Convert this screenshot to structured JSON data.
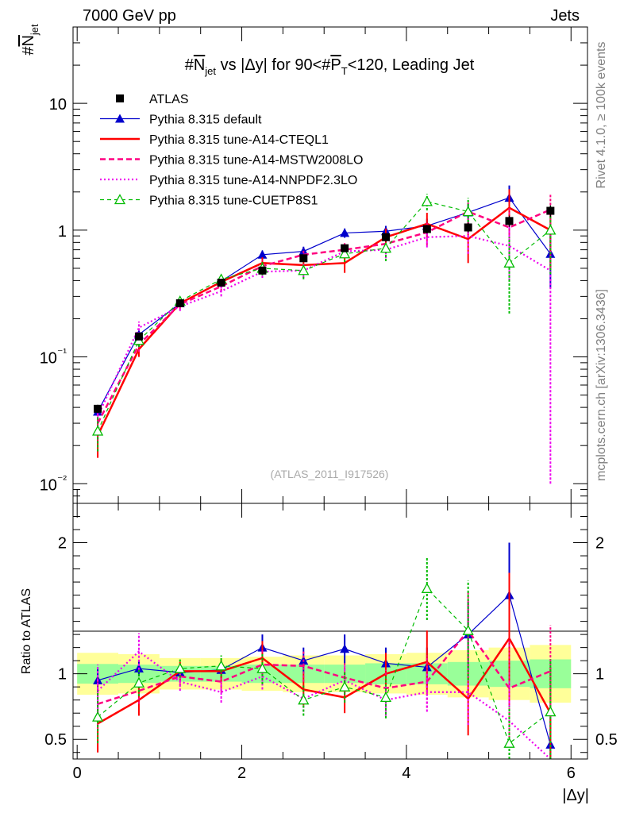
{
  "header": {
    "energy": "7000 GeV pp",
    "category": "Jets",
    "side_rivet": "Rivet 4.1.0, ≥ 100k events",
    "side_mcplots": "mcplots.cern.ch [arXiv:1306.3436]",
    "watermark": "(ATLAS_2011_I917526)"
  },
  "chart_data": [
    {
      "panel": "main",
      "type": "scatter",
      "title": "#N_jet vs |Δy| for 90<#P_T<120, Leading Jet",
      "title_parts": [
        "#",
        "N",
        "jet",
        " vs |Δy| for 90<#",
        "P",
        "T",
        "<120, Leading Jet"
      ],
      "ylabel": "#N_jet",
      "ylabel_parts": [
        "#",
        "N",
        "jet"
      ],
      "yscale": "log",
      "xlim": [
        -0.05,
        6.2
      ],
      "ylim": [
        0.007,
        40
      ],
      "ytick_labels": [
        "10",
        "1",
        "10⁻¹",
        "10⁻²"
      ],
      "x": [
        0.25,
        0.75,
        1.25,
        1.75,
        2.25,
        2.75,
        3.25,
        3.75,
        4.25,
        4.75,
        5.25,
        5.75
      ],
      "series": [
        {
          "name": "ATLAS",
          "style": "data",
          "color": "#000000",
          "values": [
            0.039,
            0.145,
            0.265,
            0.385,
            0.48,
            0.6,
            0.72,
            0.88,
            1.02,
            1.05,
            1.18,
            1.42
          ],
          "errors": [
            0.003,
            0.008,
            0.012,
            0.02,
            0.03,
            0.04,
            0.05,
            0.07,
            0.08,
            0.09,
            0.12,
            0.15
          ]
        },
        {
          "name": "Pythia 8.315 default",
          "style": "solid",
          "color": "#0000cc",
          "marker": "triangle-filled",
          "values": [
            0.037,
            0.15,
            0.265,
            0.395,
            0.64,
            0.68,
            0.95,
            0.98,
            1.08,
            1.38,
            1.8,
            0.65
          ],
          "errors": [
            0.003,
            0.008,
            0.015,
            0.025,
            0.05,
            0.06,
            0.08,
            0.1,
            0.15,
            0.25,
            0.45,
            0.3
          ]
        },
        {
          "name": "Pythia 8.315 tune-A14-CTEQL1",
          "style": "thick",
          "color": "#ff0000",
          "values": [
            0.024,
            0.115,
            0.265,
            0.39,
            0.55,
            0.53,
            0.55,
            0.88,
            1.12,
            0.85,
            1.5,
            1.0
          ],
          "errors": [
            0.008,
            0.015,
            0.02,
            0.03,
            0.06,
            0.07,
            0.09,
            0.15,
            0.25,
            0.3,
            0.6,
            0.5
          ]
        },
        {
          "name": "Pythia 8.315 tune-A14-MSTW2008LO",
          "style": "dashed",
          "color": "#ff0080",
          "values": [
            0.03,
            0.125,
            0.26,
            0.36,
            0.52,
            0.64,
            0.7,
            0.78,
            0.96,
            1.4,
            1.05,
            1.45
          ],
          "errors": [
            0.008,
            0.015,
            0.02,
            0.03,
            0.06,
            0.07,
            0.09,
            0.12,
            0.2,
            0.3,
            0.45,
            0.5
          ]
        },
        {
          "name": "Pythia 8.315 tune-A14-NNPDF2.3LO",
          "style": "dotted",
          "color": "#ee00ee",
          "values": [
            0.034,
            0.17,
            0.25,
            0.33,
            0.47,
            0.48,
            0.68,
            0.7,
            0.88,
            0.9,
            0.75,
            0.48
          ],
          "errors": [
            0.008,
            0.02,
            0.02,
            0.03,
            0.05,
            0.06,
            0.08,
            0.1,
            0.15,
            0.25,
            0.35,
            0.47
          ]
        },
        {
          "name": "Pythia 8.315 tune-CUETP8S1",
          "style": "dashed-thin",
          "color": "#00bb00",
          "marker": "triangle-open",
          "values": [
            0.026,
            0.135,
            0.275,
            0.41,
            0.5,
            0.48,
            0.65,
            0.72,
            1.68,
            1.4,
            0.55,
            1.0
          ],
          "errors": [
            0.008,
            0.015,
            0.02,
            0.03,
            0.06,
            0.07,
            0.09,
            0.15,
            0.25,
            0.4,
            0.33,
            0.55
          ]
        }
      ]
    },
    {
      "panel": "ratio",
      "type": "scatter",
      "ylabel": "Ratio to ATLAS",
      "xlabel": "|Δy|",
      "xlim": [
        -0.05,
        6.2
      ],
      "ylim": [
        0.35,
        2.3
      ],
      "xticks": [
        0,
        2,
        4,
        6
      ],
      "xtick_labels": [
        "0",
        "2",
        "4",
        "6"
      ],
      "yticks": [
        0.5,
        1,
        2
      ],
      "ytick_labels": [
        "0.5",
        "1",
        "2"
      ],
      "x_edges": [
        0,
        0.5,
        1,
        1.5,
        2,
        2.5,
        3,
        3.5,
        4,
        4.5,
        5,
        5.5,
        6
      ],
      "band_inner": [
        0.075,
        0.07,
        0.06,
        0.06,
        0.07,
        0.07,
        0.07,
        0.08,
        0.08,
        0.09,
        0.1,
        0.11
      ],
      "band_outer": [
        0.16,
        0.15,
        0.12,
        0.12,
        0.13,
        0.14,
        0.14,
        0.15,
        0.16,
        0.18,
        0.2,
        0.22
      ],
      "x": [
        0.25,
        0.75,
        1.25,
        1.75,
        2.25,
        2.75,
        3.25,
        3.75,
        4.25,
        4.75,
        5.25,
        5.75
      ],
      "series": [
        {
          "name": "Pythia 8.315 default",
          "style": "solid",
          "color": "#0000cc",
          "marker": "triangle-filled",
          "values": [
            0.95,
            1.04,
            1.01,
            1.03,
            1.2,
            1.1,
            1.19,
            1.08,
            1.05,
            1.3,
            1.6,
            0.46
          ],
          "errors": [
            0.1,
            0.06,
            0.05,
            0.06,
            0.1,
            0.1,
            0.11,
            0.12,
            0.15,
            0.25,
            0.4,
            0.2
          ]
        },
        {
          "name": "Pythia 8.315 tune-A14-CTEQL1",
          "style": "thick",
          "color": "#ff0000",
          "values": [
            0.62,
            0.8,
            1.02,
            1.02,
            1.12,
            0.88,
            0.82,
            1.0,
            1.09,
            0.81,
            1.27,
            0.7
          ],
          "errors": [
            0.22,
            0.12,
            0.07,
            0.08,
            0.13,
            0.12,
            0.12,
            0.16,
            0.24,
            0.28,
            0.5,
            0.35
          ]
        },
        {
          "name": "Pythia 8.315 tune-A14-MSTW2008LO",
          "style": "dashed",
          "color": "#ff0080",
          "values": [
            0.77,
            0.87,
            0.98,
            0.94,
            1.07,
            1.06,
            0.97,
            0.89,
            0.94,
            1.33,
            0.89,
            1.02
          ],
          "errors": [
            0.2,
            0.1,
            0.07,
            0.08,
            0.12,
            0.12,
            0.12,
            0.14,
            0.2,
            0.3,
            0.38,
            0.35
          ]
        },
        {
          "name": "Pythia 8.315 tune-A14-NNPDF2.3LO",
          "style": "dotted",
          "color": "#ee00ee",
          "values": [
            0.87,
            1.17,
            0.94,
            0.86,
            0.98,
            0.81,
            0.95,
            0.8,
            0.86,
            0.86,
            0.64,
            0.34
          ],
          "errors": [
            0.2,
            0.14,
            0.07,
            0.08,
            0.1,
            0.1,
            0.11,
            0.12,
            0.15,
            0.25,
            0.3,
            0.33
          ]
        },
        {
          "name": "Pythia 8.315 tune-CUETP8S1",
          "style": "dashed-thin",
          "color": "#00bb00",
          "marker": "triangle-open",
          "values": [
            0.67,
            0.93,
            1.04,
            1.06,
            1.04,
            0.8,
            0.9,
            0.82,
            1.65,
            1.33,
            0.47,
            0.71
          ],
          "errors": [
            0.2,
            0.1,
            0.07,
            0.08,
            0.12,
            0.12,
            0.12,
            0.16,
            0.24,
            0.38,
            0.28,
            0.4
          ]
        }
      ]
    }
  ]
}
